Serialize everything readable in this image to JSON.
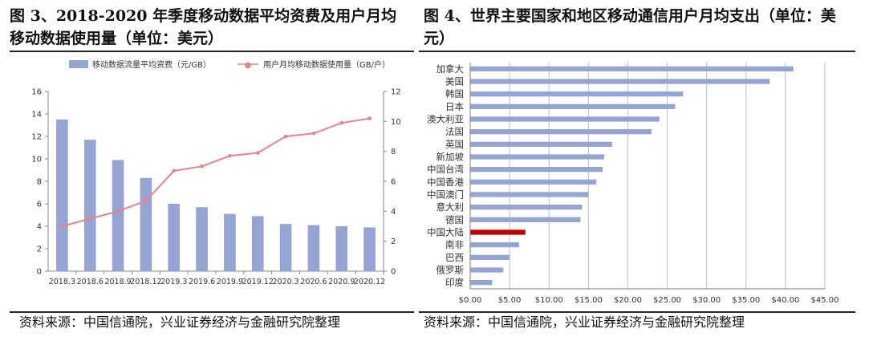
{
  "titles": {
    "left": "图 3、2018-2020 年季度移动数据平均资费及用户月均移动数据使用量（单位：美元）",
    "right": "图 4、世界主要国家和地区移动通信用户月均支出（单位：美元）"
  },
  "sources": {
    "left": "资料来源：中国信通院，兴业证券经济与金融研究院整理",
    "right": "资料来源：中国信通院，兴业证券经济与金融研究院整理"
  },
  "colors": {
    "bar": "#95a4d2",
    "line": "#e8828a",
    "highlight": "#c00000",
    "axis": "#8a8a8a"
  },
  "chart_data": [
    {
      "type": "bar",
      "categories": [
        "2018.3",
        "2018.6",
        "2018.9",
        "2018.12",
        "2019.3",
        "2019.6",
        "2019.9",
        "2019.12",
        "2020.3",
        "2020.6",
        "2020.9",
        "2020.12"
      ],
      "series": [
        {
          "name": "移动数据流量平均资费（元/GB）",
          "type": "bar",
          "axis": "left",
          "values": [
            13.5,
            11.7,
            9.9,
            8.3,
            6.0,
            5.7,
            5.1,
            4.9,
            4.2,
            4.1,
            4.0,
            3.9
          ]
        },
        {
          "name": "用户月均移动数据使用量（GB/户）",
          "type": "line",
          "axis": "right",
          "values": [
            3.0,
            3.5,
            4.0,
            4.7,
            6.7,
            7.0,
            7.7,
            7.9,
            9.0,
            9.2,
            9.9,
            10.2
          ]
        }
      ],
      "ylim_left": [
        0,
        16
      ],
      "ylim_right": [
        0,
        12
      ],
      "yticks_left": [
        "0",
        "2",
        "4",
        "6",
        "8",
        "10",
        "12",
        "14",
        "16"
      ],
      "yticks_right": [
        "0",
        "2",
        "4",
        "6",
        "8",
        "10",
        "12"
      ],
      "legend": "top",
      "grid": false
    },
    {
      "type": "bar",
      "orientation": "horizontal",
      "categories": [
        "加拿大",
        "美国",
        "韩国",
        "日本",
        "澳大利亚",
        "法国",
        "英国",
        "新加坡",
        "中国台湾",
        "中国香港",
        "中国澳门",
        "意大利",
        "德国",
        "中国大陆",
        "南非",
        "巴西",
        "俄罗斯",
        "印度"
      ],
      "values": [
        41.0,
        38.0,
        27.0,
        26.0,
        24.0,
        23.0,
        18.0,
        17.0,
        16.8,
        16.0,
        15.0,
        14.2,
        14.0,
        7.0,
        6.2,
        5.0,
        4.2,
        2.8
      ],
      "highlight": "中国大陆",
      "xlim": [
        0,
        45
      ],
      "xticks": [
        "$0.00",
        "$5.00",
        "$10.00",
        "$15.00",
        "$20.00",
        "$25.00",
        "$30.00",
        "$35.00",
        "$40.00",
        "$45.00"
      ],
      "grid": true
    }
  ]
}
